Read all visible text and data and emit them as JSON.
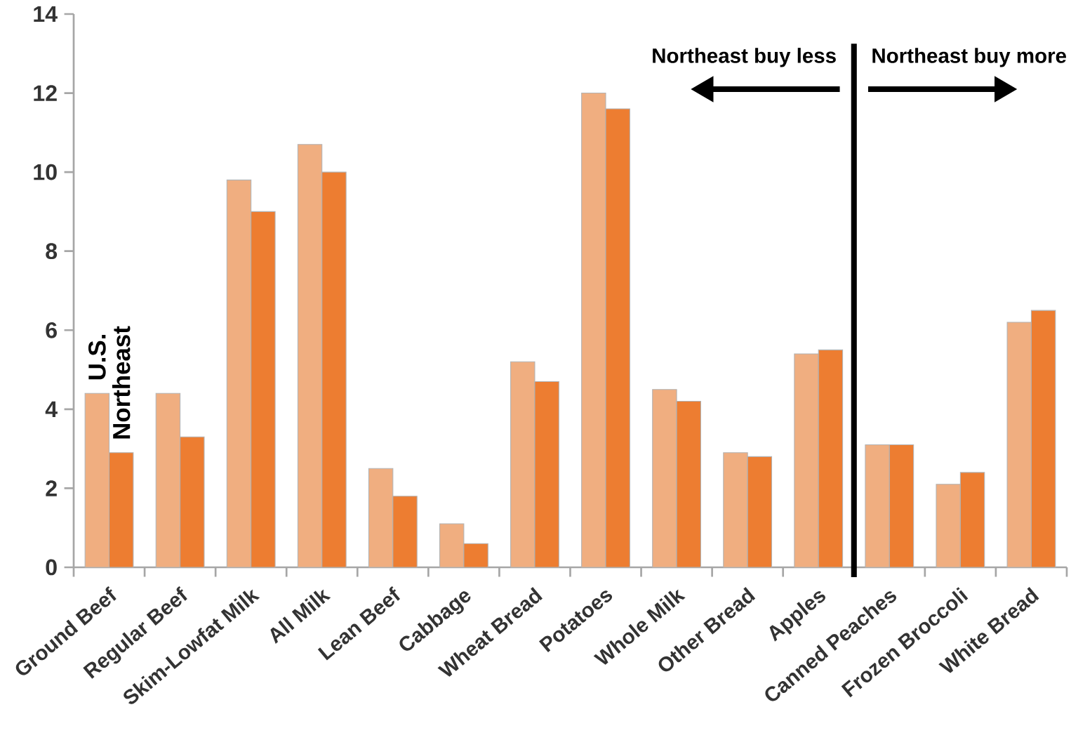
{
  "chart_data": {
    "type": "bar",
    "categories": [
      "Ground Beef",
      "Regular Beef",
      "Skim-Lowfat Milk",
      "All Milk",
      "Lean Beef",
      "Cabbage",
      "Wheat Bread",
      "Potatoes",
      "Whole Milk",
      "Other Bread",
      "Apples",
      "Canned Peaches",
      "Frozen Broccoli",
      "White Bread"
    ],
    "series": [
      {
        "name": "U.S.",
        "color": "#f0ae80",
        "values": [
          4.4,
          4.4,
          9.8,
          10.7,
          2.5,
          1.1,
          5.2,
          12.0,
          4.5,
          2.9,
          5.4,
          3.1,
          2.1,
          6.2
        ]
      },
      {
        "name": "Northeast",
        "color": "#ed7d31",
        "values": [
          2.9,
          3.3,
          9.0,
          10.0,
          1.8,
          0.6,
          4.7,
          11.6,
          4.2,
          2.8,
          5.5,
          3.1,
          2.4,
          6.5
        ]
      }
    ],
    "ylim": [
      0,
      14
    ],
    "yticks": [
      0,
      2,
      4,
      6,
      8,
      10,
      12,
      14
    ],
    "annotations": [
      "Northeast buy less",
      "Northeast buy more"
    ]
  }
}
